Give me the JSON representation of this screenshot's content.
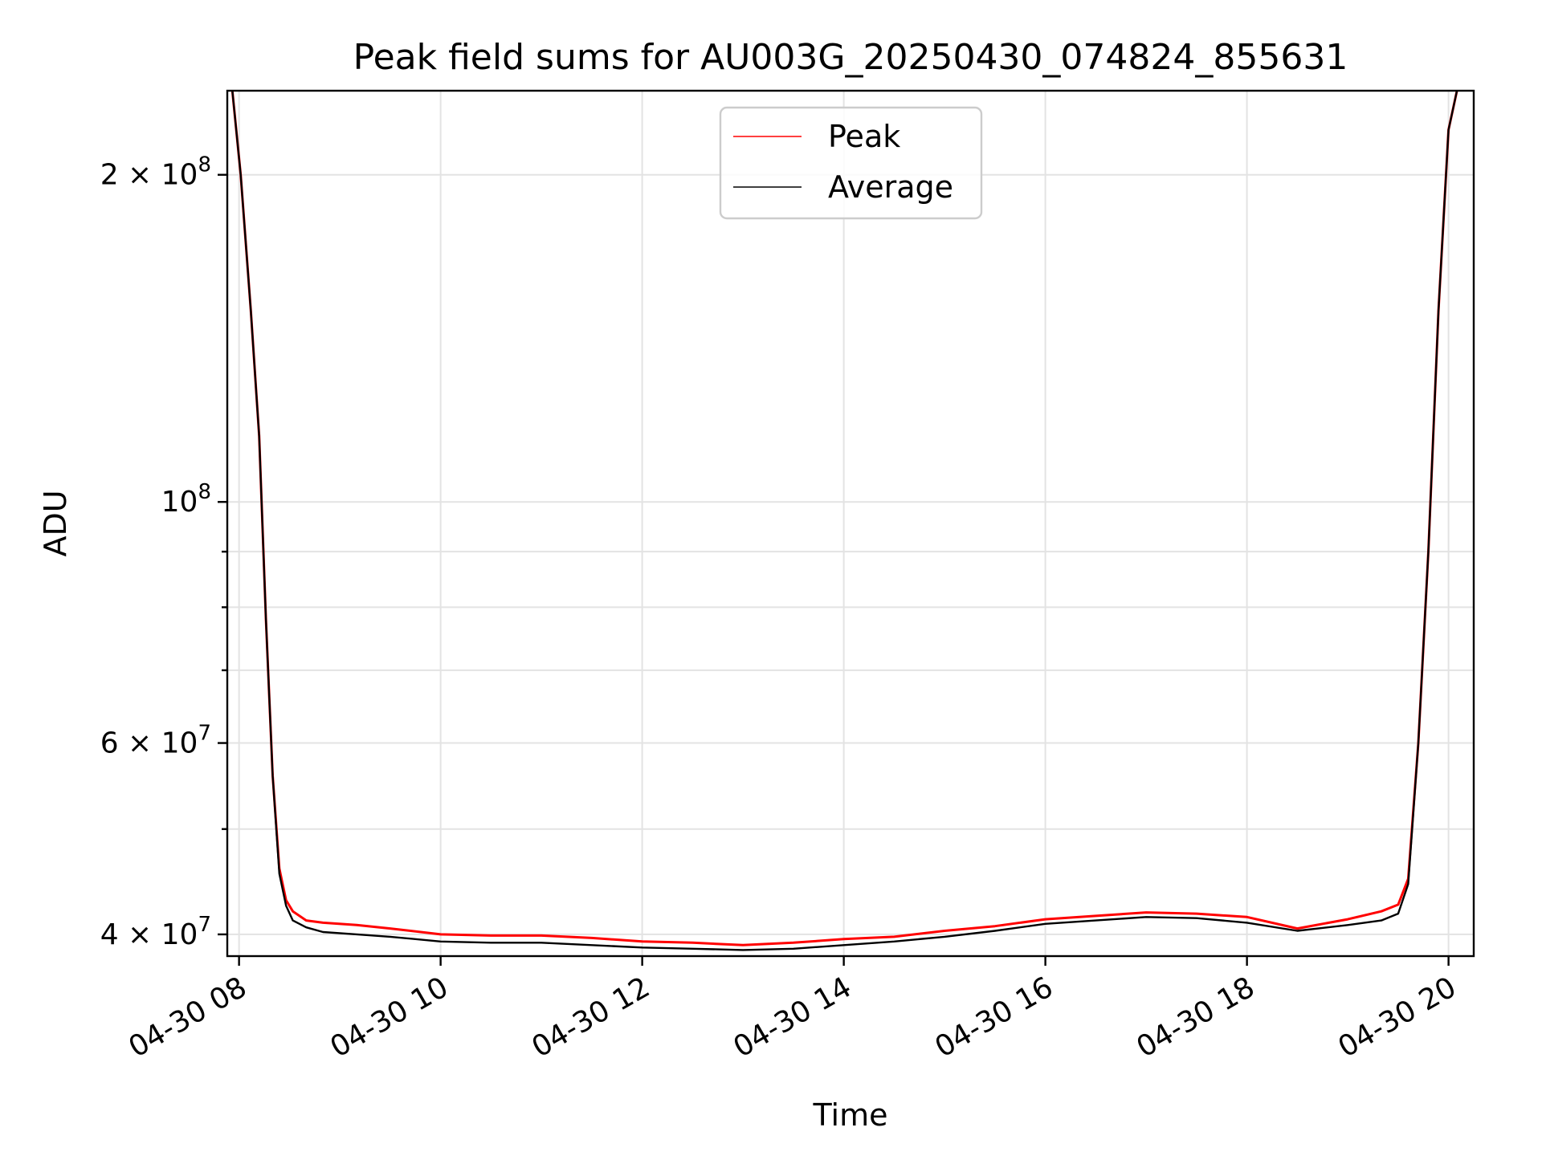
{
  "chart_data": {
    "type": "line",
    "title": "Peak field sums for AU003G_20250430_074824_855631",
    "xlabel": "Time",
    "ylabel": "ADU",
    "y_scale": "log",
    "xlim": [
      "2025-04-30 07:53",
      "2025-04-30 20:15"
    ],
    "ylim": [
      38200000,
      239000000
    ],
    "x_ticks": [
      {
        "value": "2025-04-30 08:00",
        "label": "04-30 08"
      },
      {
        "value": "2025-04-30 10:00",
        "label": "04-30 10"
      },
      {
        "value": "2025-04-30 12:00",
        "label": "04-30 12"
      },
      {
        "value": "2025-04-30 14:00",
        "label": "04-30 14"
      },
      {
        "value": "2025-04-30 16:00",
        "label": "04-30 16"
      },
      {
        "value": "2025-04-30 18:00",
        "label": "04-30 18"
      },
      {
        "value": "2025-04-30 20:00",
        "label": "04-30 20"
      }
    ],
    "y_ticks_major": [
      {
        "value": 40000000,
        "base": "4 × 10",
        "exp": "7"
      },
      {
        "value": 60000000,
        "base": "6 × 10",
        "exp": "7"
      },
      {
        "value": 100000000,
        "base": "10",
        "exp": "8"
      },
      {
        "value": 200000000,
        "base": "2 × 10",
        "exp": "8"
      }
    ],
    "y_ticks_minor": [
      50000000,
      70000000,
      80000000,
      90000000
    ],
    "grid": true,
    "legend_position": "upper-center",
    "series": [
      {
        "name": "Peak",
        "color": "#ff0000",
        "x": [
          "2025-04-30 07:56",
          "2025-04-30 08:01",
          "2025-04-30 08:07",
          "2025-04-30 08:12",
          "2025-04-30 08:16",
          "2025-04-30 08:20",
          "2025-04-30 08:24",
          "2025-04-30 08:28",
          "2025-04-30 08:32",
          "2025-04-30 08:40",
          "2025-04-30 08:50",
          "2025-04-30 09:10",
          "2025-04-30 09:30",
          "2025-04-30 10:00",
          "2025-04-30 10:30",
          "2025-04-30 11:00",
          "2025-04-30 11:30",
          "2025-04-30 12:00",
          "2025-04-30 12:30",
          "2025-04-30 13:00",
          "2025-04-30 13:30",
          "2025-04-30 14:00",
          "2025-04-30 14:30",
          "2025-04-30 15:00",
          "2025-04-30 15:30",
          "2025-04-30 16:00",
          "2025-04-30 16:30",
          "2025-04-30 17:00",
          "2025-04-30 17:30",
          "2025-04-30 18:00",
          "2025-04-30 18:30",
          "2025-04-30 19:00",
          "2025-04-30 19:20",
          "2025-04-30 19:30",
          "2025-04-30 19:36",
          "2025-04-30 19:42",
          "2025-04-30 19:48",
          "2025-04-30 19:54",
          "2025-04-30 20:00",
          "2025-04-30 20:05"
        ],
        "y": [
          239000000,
          200000000,
          150000000,
          115000000,
          78000000,
          56000000,
          46000000,
          43000000,
          42000000,
          41200000,
          41000000,
          40800000,
          40500000,
          40000000,
          39900000,
          39900000,
          39700000,
          39400000,
          39300000,
          39100000,
          39300000,
          39600000,
          39800000,
          40300000,
          40700000,
          41300000,
          41600000,
          41900000,
          41800000,
          41500000,
          40500000,
          41300000,
          42000000,
          42600000,
          45000000,
          60000000,
          90000000,
          150000000,
          220000000,
          239000000
        ]
      },
      {
        "name": "Average",
        "color": "#000000",
        "x": [
          "2025-04-30 07:56",
          "2025-04-30 08:01",
          "2025-04-30 08:07",
          "2025-04-30 08:12",
          "2025-04-30 08:16",
          "2025-04-30 08:20",
          "2025-04-30 08:24",
          "2025-04-30 08:28",
          "2025-04-30 08:32",
          "2025-04-30 08:40",
          "2025-04-30 08:50",
          "2025-04-30 09:10",
          "2025-04-30 09:30",
          "2025-04-30 10:00",
          "2025-04-30 10:30",
          "2025-04-30 11:00",
          "2025-04-30 11:30",
          "2025-04-30 12:00",
          "2025-04-30 12:30",
          "2025-04-30 13:00",
          "2025-04-30 13:30",
          "2025-04-30 14:00",
          "2025-04-30 14:30",
          "2025-04-30 15:00",
          "2025-04-30 15:30",
          "2025-04-30 16:00",
          "2025-04-30 16:30",
          "2025-04-30 17:00",
          "2025-04-30 17:30",
          "2025-04-30 18:00",
          "2025-04-30 18:30",
          "2025-04-30 19:00",
          "2025-04-30 19:20",
          "2025-04-30 19:30",
          "2025-04-30 19:36",
          "2025-04-30 19:42",
          "2025-04-30 19:48",
          "2025-04-30 19:54",
          "2025-04-30 20:00",
          "2025-04-30 20:05"
        ],
        "y": [
          239000000,
          200000000,
          150000000,
          115000000,
          78000000,
          56000000,
          45500000,
          42500000,
          41200000,
          40600000,
          40200000,
          40000000,
          39800000,
          39400000,
          39300000,
          39300000,
          39100000,
          38900000,
          38800000,
          38700000,
          38800000,
          39100000,
          39400000,
          39800000,
          40300000,
          40900000,
          41200000,
          41500000,
          41400000,
          41000000,
          40300000,
          40800000,
          41200000,
          41800000,
          44500000,
          60000000,
          90000000,
          150000000,
          220000000,
          239000000
        ]
      }
    ]
  }
}
